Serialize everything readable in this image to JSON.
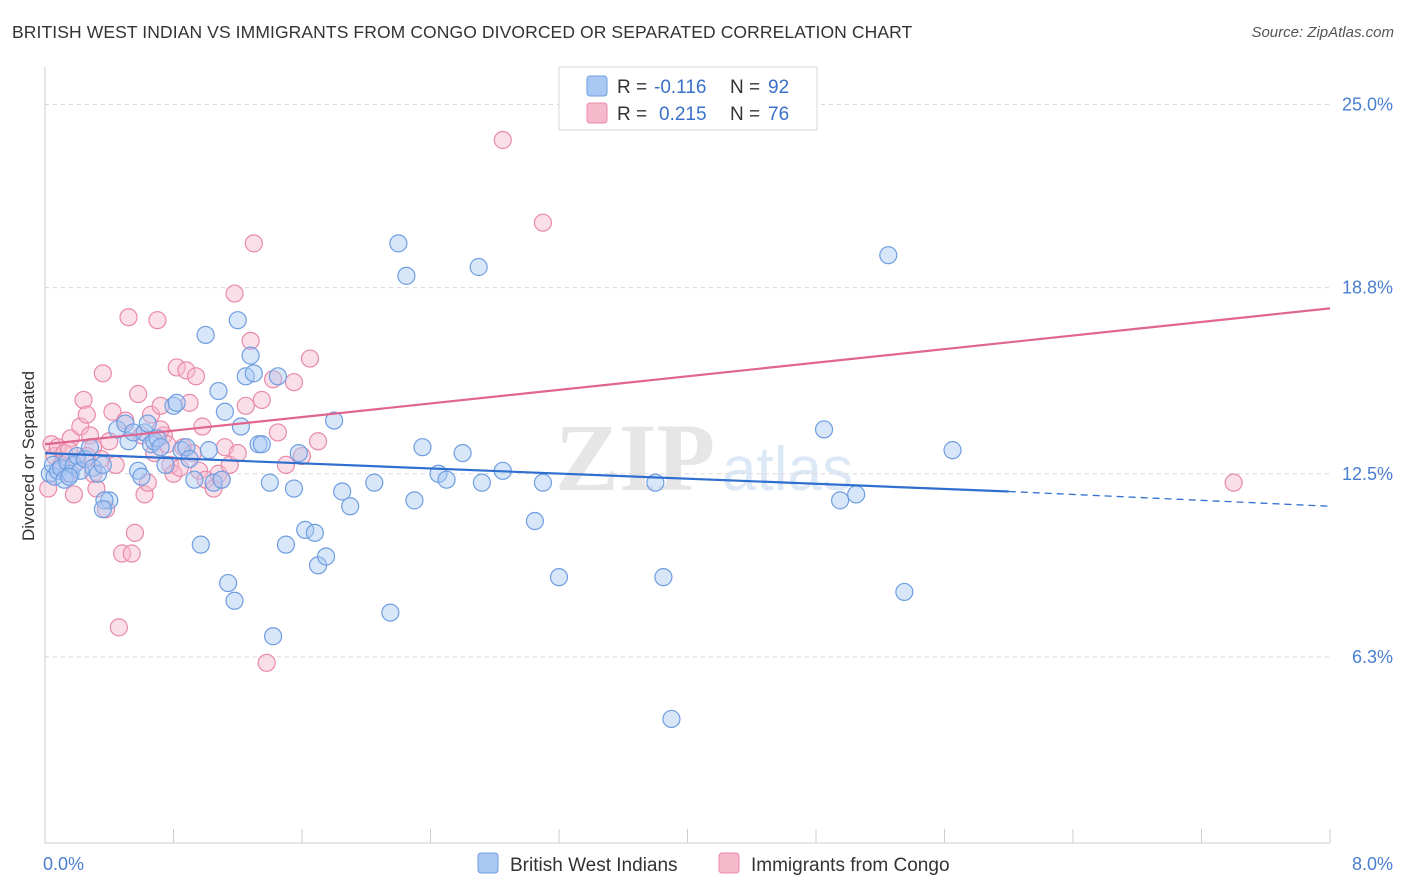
{
  "title": "BRITISH WEST INDIAN VS IMMIGRANTS FROM CONGO DIVORCED OR SEPARATED CORRELATION CHART",
  "source": "Source: ZipAtlas.com",
  "watermark": {
    "zip": "ZIP",
    "atlas": "atlas"
  },
  "colors": {
    "blue_fill": "#a9c8f3",
    "blue_stroke": "#6f9ee0",
    "blue_line": "#2f6fcf",
    "pink_fill": "#f6b9cc",
    "pink_stroke": "#e88aa8",
    "pink_line": "#e0658f",
    "grid": "#d8d8d8",
    "axis_text": "#4a7fd0"
  },
  "legend": {
    "rows": [
      {
        "r_label": "R =",
        "r_value": "-0.116",
        "n_label": "N =",
        "n_value": "92"
      },
      {
        "r_label": "R =",
        "r_value": "0.215",
        "n_label": "N =",
        "n_value": "76"
      }
    ]
  },
  "chart_data": {
    "type": "scatter",
    "title": "BRITISH WEST INDIAN VS IMMIGRANTS FROM CONGO DIVORCED OR SEPARATED CORRELATION CHART",
    "xlabel": "",
    "ylabel": "Divorced or Separated",
    "xlim": [
      0,
      8
    ],
    "ylim": [
      0,
      26
    ],
    "x_tick_labels": [
      {
        "value": 0,
        "label": "0.0%"
      },
      {
        "value": 8,
        "label": "8.0%"
      }
    ],
    "y_tick_labels": [
      {
        "value": 6.3,
        "label": "6.3%"
      },
      {
        "value": 12.5,
        "label": "12.5%"
      },
      {
        "value": 18.8,
        "label": "18.8%"
      },
      {
        "value": 25.0,
        "label": "25.0%"
      }
    ],
    "grid": "horizontal dashed",
    "legend_position": "top-center",
    "series": [
      {
        "name": "British West Indians",
        "color": "#a9c8f3",
        "trend": {
          "x": [
            0,
            6.0
          ],
          "y": [
            13.2,
            11.9
          ],
          "dashed_to": [
            8.0,
            11.4
          ]
        },
        "points": [
          [
            0.03,
            12.5
          ],
          [
            0.05,
            12.8
          ],
          [
            0.06,
            12.4
          ],
          [
            0.08,
            12.6
          ],
          [
            0.1,
            12.7
          ],
          [
            0.12,
            12.3
          ],
          [
            0.14,
            12.9
          ],
          [
            0.16,
            12.5
          ],
          [
            0.18,
            12.8
          ],
          [
            0.2,
            13.1
          ],
          [
            0.22,
            12.6
          ],
          [
            0.25,
            13.0
          ],
          [
            0.28,
            13.4
          ],
          [
            0.3,
            12.7
          ],
          [
            0.33,
            12.5
          ],
          [
            0.36,
            12.8
          ],
          [
            0.4,
            11.6
          ],
          [
            0.37,
            11.6
          ],
          [
            0.36,
            11.3
          ],
          [
            0.45,
            14.0
          ],
          [
            0.5,
            14.2
          ],
          [
            0.52,
            13.6
          ],
          [
            0.55,
            13.9
          ],
          [
            0.58,
            12.6
          ],
          [
            0.6,
            12.4
          ],
          [
            0.62,
            13.9
          ],
          [
            0.64,
            14.2
          ],
          [
            0.66,
            13.5
          ],
          [
            0.68,
            13.6
          ],
          [
            0.7,
            13.7
          ],
          [
            0.72,
            13.4
          ],
          [
            0.75,
            12.8
          ],
          [
            0.8,
            14.8
          ],
          [
            0.82,
            14.9
          ],
          [
            0.85,
            13.3
          ],
          [
            0.88,
            13.4
          ],
          [
            0.9,
            13.0
          ],
          [
            0.93,
            12.3
          ],
          [
            0.97,
            10.1
          ],
          [
            1.0,
            17.2
          ],
          [
            1.02,
            13.3
          ],
          [
            1.05,
            12.2
          ],
          [
            1.08,
            15.3
          ],
          [
            1.1,
            12.3
          ],
          [
            1.12,
            14.6
          ],
          [
            1.14,
            8.8
          ],
          [
            1.18,
            8.2
          ],
          [
            1.2,
            17.7
          ],
          [
            1.22,
            14.1
          ],
          [
            1.25,
            15.8
          ],
          [
            1.28,
            16.5
          ],
          [
            1.3,
            15.9
          ],
          [
            1.33,
            13.5
          ],
          [
            1.35,
            13.5
          ],
          [
            1.4,
            12.2
          ],
          [
            1.42,
            7.0
          ],
          [
            1.45,
            15.8
          ],
          [
            1.5,
            10.1
          ],
          [
            1.55,
            12.0
          ],
          [
            1.58,
            13.2
          ],
          [
            1.62,
            10.6
          ],
          [
            1.68,
            10.5
          ],
          [
            1.7,
            9.4
          ],
          [
            1.75,
            9.7
          ],
          [
            1.8,
            14.3
          ],
          [
            1.85,
            11.9
          ],
          [
            1.9,
            11.4
          ],
          [
            2.05,
            12.2
          ],
          [
            2.15,
            7.8
          ],
          [
            2.2,
            20.3
          ],
          [
            2.25,
            19.2
          ],
          [
            2.3,
            11.6
          ],
          [
            2.35,
            13.4
          ],
          [
            2.45,
            12.5
          ],
          [
            2.5,
            12.3
          ],
          [
            2.6,
            13.2
          ],
          [
            2.7,
            19.5
          ],
          [
            2.72,
            12.2
          ],
          [
            2.85,
            12.6
          ],
          [
            3.05,
            10.9
          ],
          [
            3.1,
            12.2
          ],
          [
            3.2,
            9.0
          ],
          [
            3.8,
            12.2
          ],
          [
            3.85,
            9.0
          ],
          [
            3.9,
            4.2
          ],
          [
            4.85,
            14.0
          ],
          [
            4.95,
            11.6
          ],
          [
            5.05,
            11.8
          ],
          [
            5.25,
            19.9
          ],
          [
            5.35,
            8.5
          ],
          [
            5.65,
            13.3
          ],
          [
            0.15,
            12.4
          ]
        ]
      },
      {
        "name": "Immigrants from Congo",
        "color": "#f6b9cc",
        "trend": {
          "x": [
            0,
            8.0
          ],
          "y": [
            13.5,
            18.1
          ]
        },
        "points": [
          [
            0.02,
            12.0
          ],
          [
            0.04,
            13.5
          ],
          [
            0.06,
            13.1
          ],
          [
            0.08,
            13.4
          ],
          [
            0.1,
            12.8
          ],
          [
            0.12,
            13.2
          ],
          [
            0.14,
            12.5
          ],
          [
            0.16,
            13.7
          ],
          [
            0.18,
            11.8
          ],
          [
            0.2,
            12.9
          ],
          [
            0.22,
            14.1
          ],
          [
            0.24,
            15.0
          ],
          [
            0.26,
            14.5
          ],
          [
            0.28,
            13.8
          ],
          [
            0.3,
            13.4
          ],
          [
            0.32,
            12.0
          ],
          [
            0.35,
            13.0
          ],
          [
            0.36,
            15.9
          ],
          [
            0.38,
            11.3
          ],
          [
            0.4,
            13.6
          ],
          [
            0.42,
            14.6
          ],
          [
            0.44,
            12.8
          ],
          [
            0.46,
            7.3
          ],
          [
            0.48,
            9.8
          ],
          [
            0.5,
            14.3
          ],
          [
            0.52,
            17.8
          ],
          [
            0.54,
            9.8
          ],
          [
            0.56,
            10.5
          ],
          [
            0.58,
            15.2
          ],
          [
            0.6,
            13.8
          ],
          [
            0.62,
            11.8
          ],
          [
            0.64,
            12.2
          ],
          [
            0.66,
            14.5
          ],
          [
            0.68,
            13.2
          ],
          [
            0.7,
            17.7
          ],
          [
            0.72,
            14.8
          ],
          [
            0.74,
            13.8
          ],
          [
            0.76,
            13.5
          ],
          [
            0.78,
            12.8
          ],
          [
            0.8,
            12.5
          ],
          [
            0.82,
            16.1
          ],
          [
            0.84,
            12.7
          ],
          [
            0.86,
            13.4
          ],
          [
            0.88,
            16.0
          ],
          [
            0.9,
            14.9
          ],
          [
            0.92,
            13.2
          ],
          [
            0.94,
            15.8
          ],
          [
            0.96,
            12.6
          ],
          [
            0.98,
            14.1
          ],
          [
            1.0,
            12.3
          ],
          [
            1.05,
            12.0
          ],
          [
            1.08,
            12.5
          ],
          [
            1.1,
            12.3
          ],
          [
            1.12,
            13.4
          ],
          [
            1.15,
            12.8
          ],
          [
            1.18,
            18.6
          ],
          [
            1.2,
            13.2
          ],
          [
            1.25,
            14.8
          ],
          [
            1.28,
            17.0
          ],
          [
            1.3,
            20.3
          ],
          [
            1.35,
            15.0
          ],
          [
            1.38,
            6.1
          ],
          [
            1.42,
            15.7
          ],
          [
            1.45,
            13.9
          ],
          [
            1.5,
            12.8
          ],
          [
            1.55,
            15.6
          ],
          [
            1.6,
            13.1
          ],
          [
            1.65,
            16.4
          ],
          [
            1.7,
            13.6
          ],
          [
            2.85,
            23.8
          ],
          [
            3.1,
            21.0
          ],
          [
            7.4,
            12.2
          ],
          [
            0.3,
            12.5
          ],
          [
            0.15,
            13.3
          ],
          [
            0.26,
            13.1
          ],
          [
            0.72,
            14.0
          ]
        ]
      }
    ]
  }
}
